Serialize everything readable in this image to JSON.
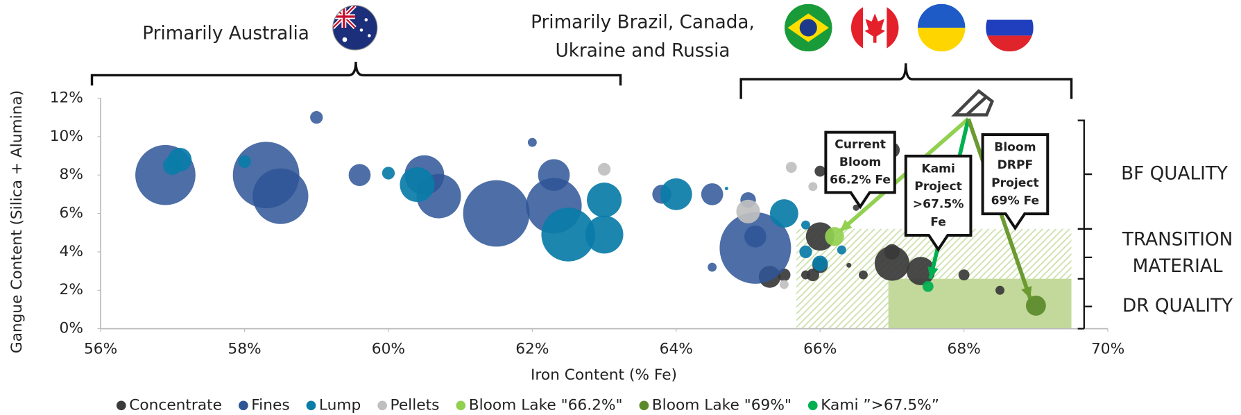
{
  "chart_data": {
    "type": "scatter",
    "x_label": "Iron Content (% Fe)",
    "y_label": "Gangue Content (Silica + Alumina)",
    "xlim": [
      56,
      70
    ],
    "xticks": [
      {
        "value": 56,
        "label": "56%"
      },
      {
        "value": 58,
        "label": "58%"
      },
      {
        "value": 60,
        "label": "60%"
      },
      {
        "value": 62,
        "label": "62%"
      },
      {
        "value": 64,
        "label": "64%"
      },
      {
        "value": 66,
        "label": "66%"
      },
      {
        "value": 68,
        "label": "68%"
      },
      {
        "value": 70,
        "label": "70%"
      }
    ],
    "ylim": [
      0,
      12
    ],
    "yticks": [
      {
        "value": 0,
        "label": "0%"
      },
      {
        "value": 2,
        "label": "2%"
      },
      {
        "value": 4,
        "label": "4%"
      },
      {
        "value": 6,
        "label": "6%"
      },
      {
        "value": 8,
        "label": "8%"
      },
      {
        "value": 10,
        "label": "10%"
      },
      {
        "value": 12,
        "label": "12%"
      }
    ],
    "grid": false,
    "legend": "bottom",
    "series": [
      {
        "name": "Concentrate",
        "color": "#3a3a3a",
        "x": [
          66.0,
          67.0,
          66.0,
          65.3,
          65.5,
          65.8,
          65.9,
          66.0,
          66.4,
          66.6,
          67.0,
          67.0,
          67.4,
          68.0,
          68.5,
          66.5
        ],
        "values": [
          8.2,
          9.3,
          4.8,
          2.7,
          2.8,
          2.8,
          2.8,
          3.3,
          3.3,
          2.8,
          3.4,
          4.0,
          3.0,
          2.8,
          2.0,
          6.3
        ],
        "sizes": [
          3,
          6,
          20,
          12,
          4,
          2,
          4,
          6,
          0.6,
          2,
          30,
          6,
          20,
          3,
          2,
          1
        ]
      },
      {
        "name": "Fines",
        "color": "#2e5596",
        "x": [
          56.9,
          58.3,
          58.5,
          59.0,
          59.6,
          60.5,
          60.7,
          61.5,
          62.0,
          62.3,
          62.3,
          63.8,
          64.5,
          65.0,
          65.1,
          65.1,
          64.5
        ],
        "values": [
          8.0,
          8.0,
          6.9,
          11.0,
          8.0,
          8.0,
          6.9,
          6.0,
          9.7,
          6.4,
          8.0,
          7.0,
          7.0,
          6.7,
          4.2,
          4.8,
          3.2
        ],
        "sizes": [
          90,
          110,
          77,
          4,
          12,
          39,
          49,
          110,
          2,
          77,
          25,
          9,
          12,
          6,
          127,
          12,
          2
        ]
      },
      {
        "name": "Lump",
        "color": "#0a7ca8",
        "x": [
          57.1,
          57.0,
          58.0,
          60.0,
          60.4,
          62.5,
          63.0,
          63.0,
          64.0,
          64.7,
          65.5,
          65.8,
          65.8,
          66.3,
          66.0
        ],
        "values": [
          8.8,
          8.5,
          8.7,
          8.1,
          7.5,
          4.9,
          6.7,
          4.9,
          7.0,
          7.3,
          6.0,
          5.4,
          4.0,
          4.1,
          3.4
        ],
        "sizes": [
          14,
          9,
          4,
          4,
          30,
          72,
          30,
          36,
          25,
          0.3,
          20,
          2,
          4,
          2,
          6
        ]
      },
      {
        "name": "Pellets",
        "color": "#bfbfbf",
        "x": [
          63.0,
          65.0,
          65.6,
          65.9,
          65.5
        ],
        "values": [
          8.3,
          6.1,
          8.4,
          7.4,
          2.3
        ],
        "sizes": [
          4,
          14,
          3,
          2,
          2
        ]
      },
      {
        "name": "Bloom Lake \"66.2%\"",
        "color": "#92d050",
        "x": [
          66.2
        ],
        "values": [
          4.8
        ],
        "sizes": [
          9
        ]
      },
      {
        "name": "Bloom Lake \"69%\"",
        "color": "#5a8a2a",
        "x": [
          69.0
        ],
        "values": [
          1.2
        ],
        "sizes": [
          10
        ]
      },
      {
        "name": "Kami ”>67.5%”",
        "color": "#00b050",
        "x": [
          67.5
        ],
        "values": [
          2.2
        ],
        "sizes": [
          3
        ]
      }
    ],
    "annotations": {
      "australia": "Primarily Australia",
      "others": [
        "Primarily Brazil, Canada,",
        "Ukraine and Russia"
      ],
      "bf": "BF QUALITY",
      "transition": [
        "TRANSITION",
        "MATERIAL"
      ],
      "dr": "DR QUALITY",
      "callouts": [
        [
          "Current",
          "Bloom",
          "66.2% Fe"
        ],
        [
          "Kami",
          "Project",
          ">67.5%",
          "Fe"
        ],
        [
          "Bloom",
          "DRPF",
          "Project",
          "69% Fe"
        ]
      ]
    }
  }
}
